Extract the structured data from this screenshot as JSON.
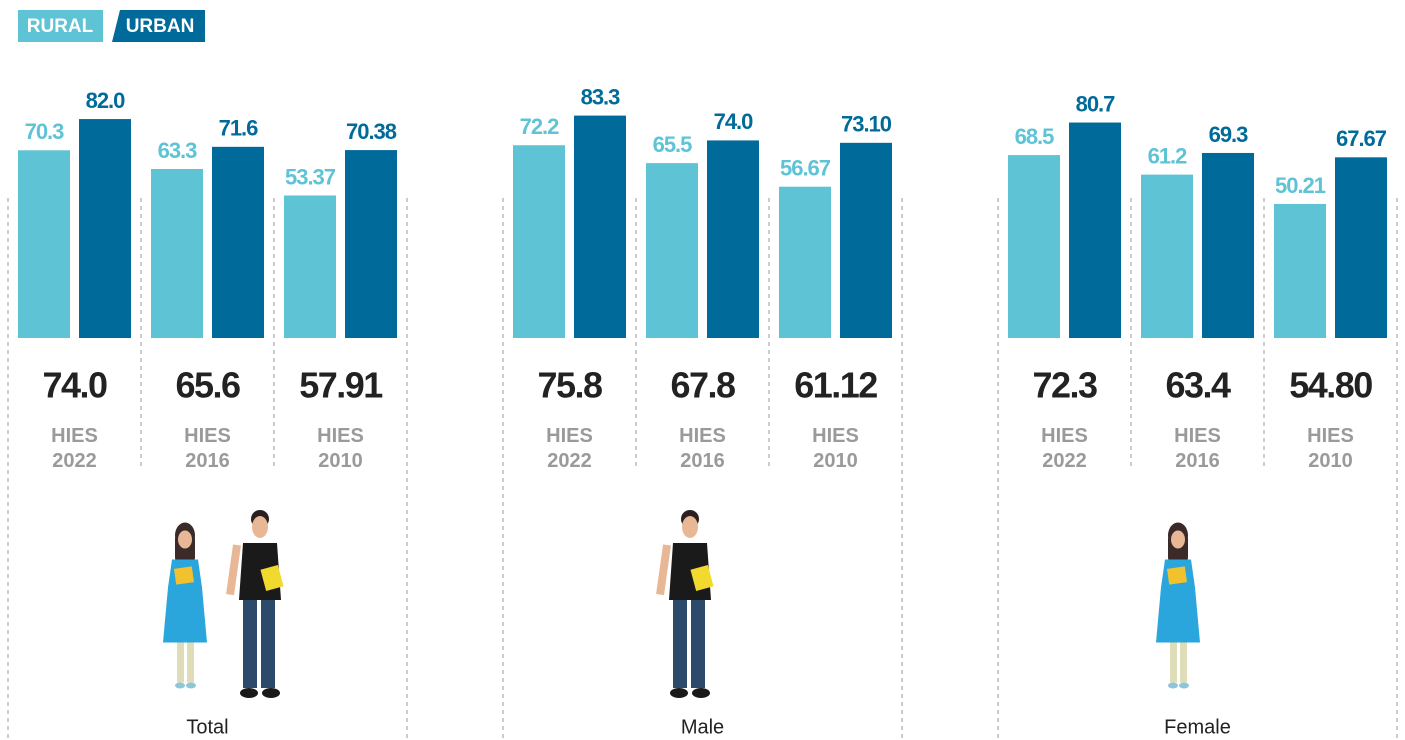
{
  "chart_data": {
    "type": "bar",
    "panels": [
      "Total",
      "Male",
      "Female"
    ],
    "categories": [
      "HIES 2022",
      "HIES 2016",
      "HIES 2010"
    ],
    "series": [
      {
        "name": "RURAL",
        "color": "#5fc3d6",
        "values": [
          [
            70.3,
            63.3,
            53.37
          ],
          [
            72.2,
            65.5,
            56.67
          ],
          [
            68.5,
            61.2,
            50.21
          ]
        ],
        "value_labels": [
          [
            "70.3",
            "63.3",
            "53.37"
          ],
          [
            "72.2",
            "65.5",
            "56.67"
          ],
          [
            "68.5",
            "61.2",
            "50.21"
          ]
        ]
      },
      {
        "name": "URBAN",
        "color": "#006b9a",
        "values": [
          [
            82.0,
            71.6,
            70.38
          ],
          [
            83.3,
            74.0,
            73.1
          ],
          [
            80.7,
            69.3,
            67.67
          ]
        ],
        "value_labels": [
          [
            "82.0",
            "71.6",
            "70.38"
          ],
          [
            "83.3",
            "74.0",
            "73.10"
          ],
          [
            "80.7",
            "69.3",
            "67.67"
          ]
        ]
      }
    ],
    "overall": {
      "values": [
        [
          74.0,
          65.6,
          57.91
        ],
        [
          75.8,
          67.8,
          61.12
        ],
        [
          72.3,
          63.4,
          54.8
        ]
      ],
      "value_labels": [
        [
          "74.0",
          "65.6",
          "57.91"
        ],
        [
          "75.8",
          "67.8",
          "61.12"
        ],
        [
          "72.3",
          "63.4",
          "54.80"
        ]
      ]
    },
    "ylim": [
      0,
      100
    ]
  }
}
